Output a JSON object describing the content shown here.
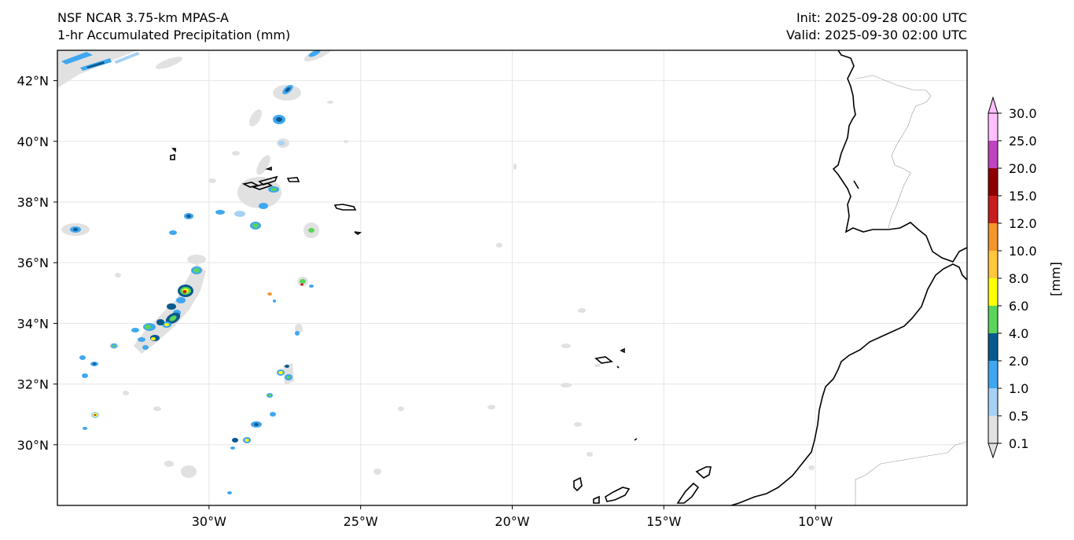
{
  "header": {
    "model": "NSF NCAR 3.75-km MPAS-A",
    "field": "1-hr Accumulated Precipitation (mm)",
    "init": "Init: 2025-09-28 00:00 UTC",
    "valid": "Valid: 2025-09-30 02:00 UTC"
  },
  "axes": {
    "lon_ticks": [
      "30°W",
      "25°W",
      "20°W",
      "15°W",
      "10°W"
    ],
    "lat_ticks": [
      "42°N",
      "40°N",
      "38°N",
      "36°N",
      "34°N",
      "32°N",
      "30°N"
    ],
    "lon_range": [
      -35,
      -5
    ],
    "lat_range": [
      28,
      43
    ],
    "grid": true
  },
  "colorbar": {
    "unit_label": "[mm]",
    "levels": [
      "0.1",
      "0.5",
      "1.0",
      "2.0",
      "4.0",
      "6.0",
      "8.0",
      "10.0",
      "12.0",
      "15.0",
      "20.0",
      "25.0",
      "30.0"
    ],
    "colors": [
      "#e1e1e1",
      "#a6d1f5",
      "#3fa7f0",
      "#085a8e",
      "#5ad45a",
      "#ffff00",
      "#ffc83c",
      "#f5962d",
      "#c81e1e",
      "#8c0000",
      "#c043c0",
      "#ffc0ff"
    ]
  }
}
